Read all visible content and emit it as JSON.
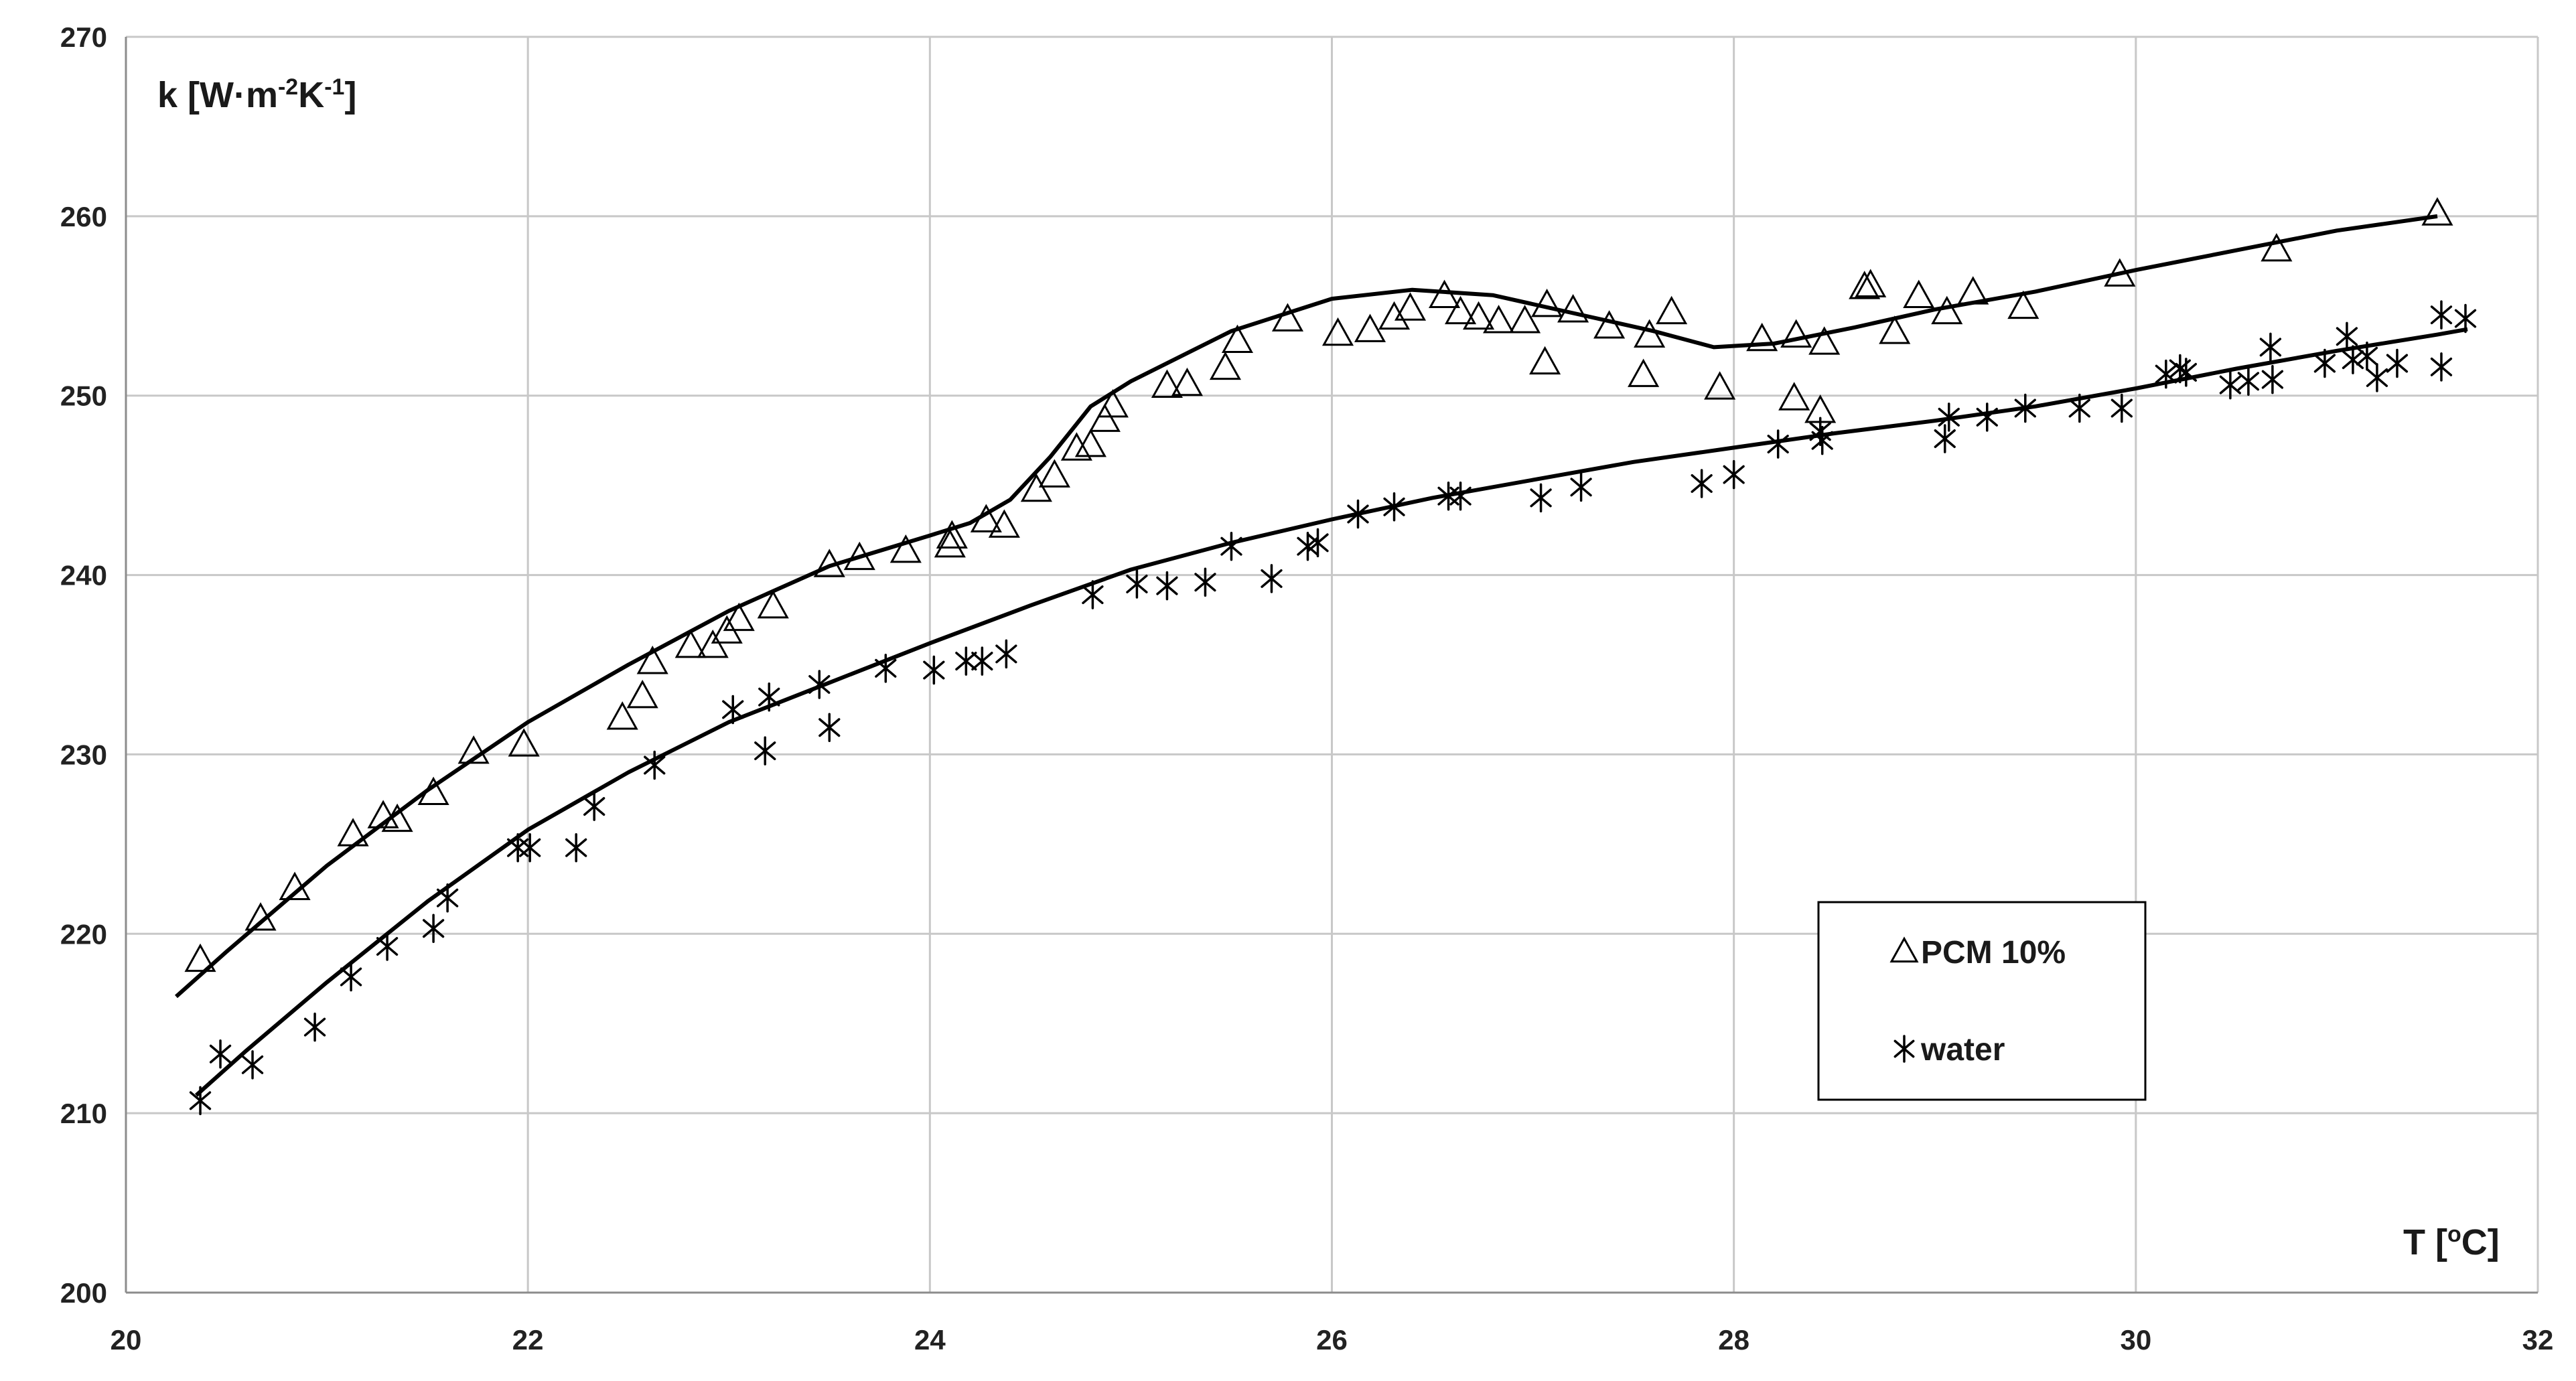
{
  "chart_data": {
    "type": "scatter",
    "ylabel": "k [W·m⁻²K⁻¹]",
    "xlabel": "T [ºC]",
    "xlim": [
      20,
      32
    ],
    "ylim": [
      200,
      270
    ],
    "x_ticks": [
      "20",
      "22",
      "24",
      "26",
      "28",
      "30",
      "32"
    ],
    "y_ticks": [
      "200",
      "210",
      "220",
      "230",
      "240",
      "250",
      "260",
      "270"
    ],
    "grid": true,
    "legend_position": "bottom-right",
    "series": [
      {
        "name": "PCM 10%",
        "marker": "triangle",
        "points": [
          [
            20.37,
            218.5
          ],
          [
            20.67,
            220.8
          ],
          [
            20.84,
            222.5
          ],
          [
            21.13,
            225.5
          ],
          [
            21.28,
            226.5
          ],
          [
            21.35,
            226.3
          ],
          [
            21.53,
            227.8
          ],
          [
            21.73,
            230.1
          ],
          [
            21.98,
            230.5
          ],
          [
            22.47,
            232.0
          ],
          [
            22.57,
            233.2
          ],
          [
            22.62,
            235.1
          ],
          [
            22.81,
            236.0
          ],
          [
            22.92,
            236.0
          ],
          [
            22.99,
            236.8
          ],
          [
            23.05,
            237.5
          ],
          [
            23.22,
            238.2
          ],
          [
            23.5,
            240.5
          ],
          [
            23.65,
            240.9
          ],
          [
            23.88,
            241.3
          ],
          [
            24.1,
            241.6
          ],
          [
            24.11,
            242.1
          ],
          [
            24.28,
            243.0
          ],
          [
            24.37,
            242.7
          ],
          [
            24.53,
            244.7
          ],
          [
            24.62,
            245.5
          ],
          [
            24.73,
            247.0
          ],
          [
            24.8,
            247.2
          ],
          [
            24.87,
            248.6
          ],
          [
            24.91,
            249.4
          ],
          [
            25.18,
            250.5
          ],
          [
            25.28,
            250.6
          ],
          [
            25.47,
            251.5
          ],
          [
            25.53,
            253.0
          ],
          [
            25.78,
            254.2
          ],
          [
            26.03,
            253.4
          ],
          [
            26.19,
            253.6
          ],
          [
            26.31,
            254.3
          ],
          [
            26.39,
            254.8
          ],
          [
            26.56,
            255.5
          ],
          [
            26.64,
            254.6
          ],
          [
            26.73,
            254.3
          ],
          [
            26.83,
            254.1
          ],
          [
            26.96,
            254.1
          ],
          [
            27.07,
            255.0
          ],
          [
            27.06,
            251.8
          ],
          [
            27.2,
            254.7
          ],
          [
            27.38,
            253.8
          ],
          [
            27.55,
            251.1
          ],
          [
            27.58,
            253.3
          ],
          [
            27.69,
            254.6
          ],
          [
            27.93,
            250.4
          ],
          [
            28.14,
            253.1
          ],
          [
            28.31,
            253.3
          ],
          [
            28.3,
            249.8
          ],
          [
            28.43,
            249.1
          ],
          [
            28.45,
            252.9
          ],
          [
            28.65,
            256.0
          ],
          [
            28.68,
            256.1
          ],
          [
            28.8,
            253.5
          ],
          [
            28.92,
            255.5
          ],
          [
            29.06,
            254.6
          ],
          [
            29.19,
            255.7
          ],
          [
            29.44,
            254.9
          ],
          [
            29.92,
            256.7
          ],
          [
            30.7,
            258.1
          ],
          [
            31.5,
            260.1
          ]
        ],
        "fit_curve": [
          [
            20.25,
            216.5
          ],
          [
            20.5,
            219.0
          ],
          [
            21.0,
            223.8
          ],
          [
            21.5,
            228.0
          ],
          [
            22.0,
            231.8
          ],
          [
            22.5,
            235.0
          ],
          [
            23.0,
            238.0
          ],
          [
            23.5,
            240.5
          ],
          [
            24.0,
            242.2
          ],
          [
            24.2,
            242.9
          ],
          [
            24.4,
            244.2
          ],
          [
            24.6,
            246.6
          ],
          [
            24.8,
            249.4
          ],
          [
            25.0,
            250.8
          ],
          [
            25.5,
            253.6
          ],
          [
            26.0,
            255.4
          ],
          [
            26.4,
            255.9
          ],
          [
            26.8,
            255.6
          ],
          [
            27.2,
            254.6
          ],
          [
            27.6,
            253.6
          ],
          [
            27.9,
            252.7
          ],
          [
            28.2,
            252.9
          ],
          [
            28.6,
            253.8
          ],
          [
            29.0,
            254.8
          ],
          [
            29.5,
            255.8
          ],
          [
            30.0,
            257.0
          ],
          [
            30.5,
            258.1
          ],
          [
            31.0,
            259.2
          ],
          [
            31.5,
            260.0
          ]
        ]
      },
      {
        "name": "water",
        "marker": "asterisk",
        "points": [
          [
            20.37,
            210.7
          ],
          [
            20.47,
            213.3
          ],
          [
            20.63,
            212.7
          ],
          [
            20.94,
            214.8
          ],
          [
            21.12,
            217.6
          ],
          [
            21.3,
            219.3
          ],
          [
            21.53,
            220.3
          ],
          [
            21.6,
            222.0
          ],
          [
            21.95,
            224.8
          ],
          [
            22.01,
            224.8
          ],
          [
            22.24,
            224.8
          ],
          [
            22.33,
            227.1
          ],
          [
            22.63,
            229.4
          ],
          [
            23.02,
            232.5
          ],
          [
            23.2,
            233.2
          ],
          [
            23.18,
            230.2
          ],
          [
            23.45,
            233.9
          ],
          [
            23.5,
            231.5
          ],
          [
            23.78,
            234.8
          ],
          [
            24.02,
            234.7
          ],
          [
            24.18,
            235.2
          ],
          [
            24.26,
            235.2
          ],
          [
            24.38,
            235.6
          ],
          [
            24.81,
            238.9
          ],
          [
            25.03,
            239.5
          ],
          [
            25.18,
            239.4
          ],
          [
            25.37,
            239.6
          ],
          [
            25.5,
            241.6
          ],
          [
            25.7,
            239.8
          ],
          [
            25.88,
            241.6
          ],
          [
            25.93,
            241.8
          ],
          [
            26.13,
            243.4
          ],
          [
            26.31,
            243.8
          ],
          [
            26.58,
            244.4
          ],
          [
            26.64,
            244.4
          ],
          [
            27.04,
            244.3
          ],
          [
            27.24,
            244.9
          ],
          [
            27.84,
            245.1
          ],
          [
            28.0,
            245.6
          ],
          [
            28.22,
            247.3
          ],
          [
            28.44,
            247.5
          ],
          [
            28.43,
            248.0
          ],
          [
            29.05,
            247.6
          ],
          [
            29.07,
            248.8
          ],
          [
            29.26,
            248.8
          ],
          [
            29.45,
            249.3
          ],
          [
            29.72,
            249.3
          ],
          [
            29.93,
            249.3
          ],
          [
            30.15,
            251.2
          ],
          [
            30.22,
            251.5
          ],
          [
            30.25,
            251.3
          ],
          [
            30.47,
            250.6
          ],
          [
            30.56,
            250.8
          ],
          [
            30.68,
            250.9
          ],
          [
            30.67,
            252.7
          ],
          [
            30.94,
            251.8
          ],
          [
            31.05,
            253.3
          ],
          [
            31.08,
            252.0
          ],
          [
            31.15,
            252.2
          ],
          [
            31.2,
            251.0
          ],
          [
            31.3,
            251.8
          ],
          [
            31.52,
            254.5
          ],
          [
            31.52,
            251.6
          ],
          [
            31.64,
            254.3
          ]
        ],
        "fit_curve": [
          [
            20.35,
            211.0
          ],
          [
            20.6,
            213.5
          ],
          [
            21.0,
            217.3
          ],
          [
            21.5,
            221.8
          ],
          [
            22.0,
            225.8
          ],
          [
            22.5,
            229.0
          ],
          [
            23.0,
            231.8
          ],
          [
            23.5,
            234.0
          ],
          [
            24.0,
            236.2
          ],
          [
            24.5,
            238.3
          ],
          [
            25.0,
            240.3
          ],
          [
            25.5,
            241.8
          ],
          [
            26.0,
            243.1
          ],
          [
            26.5,
            244.3
          ],
          [
            27.0,
            245.3
          ],
          [
            27.5,
            246.3
          ],
          [
            28.0,
            247.1
          ],
          [
            28.5,
            247.9
          ],
          [
            29.0,
            248.6
          ],
          [
            29.5,
            249.4
          ],
          [
            30.0,
            250.4
          ],
          [
            30.5,
            251.5
          ],
          [
            31.0,
            252.5
          ],
          [
            31.5,
            253.4
          ],
          [
            31.65,
            253.7
          ]
        ]
      }
    ]
  }
}
